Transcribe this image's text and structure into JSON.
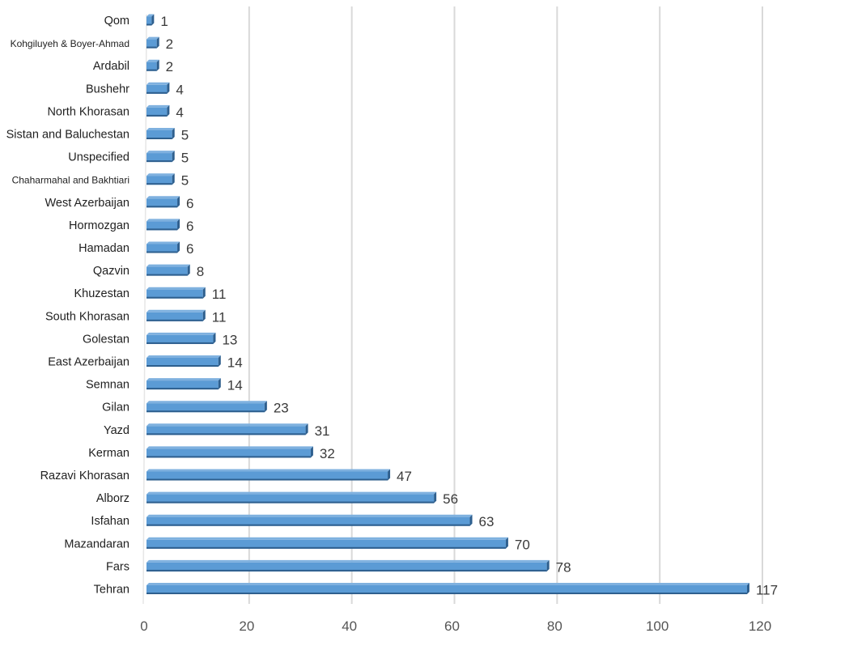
{
  "chart_data": {
    "type": "bar",
    "orientation": "horizontal",
    "title": "",
    "xlabel": "",
    "ylabel": "",
    "xlim": [
      0,
      120
    ],
    "xticks": [
      0,
      20,
      40,
      60,
      80,
      100,
      120
    ],
    "grid": "vertical",
    "legend": "none",
    "bar_color": "#5b9bd5",
    "bar_edge_color": "#2e5f8e",
    "categories": [
      "Qom",
      "Kohgiluyeh & Boyer-Ahmad",
      "Ardabil",
      "Bushehr",
      "North Khorasan",
      "Sistan and Baluchestan",
      "Unspecified",
      "Chaharmahal and Bakhtiari",
      "West Azerbaijan",
      "Hormozgan",
      "Hamadan",
      "Qazvin",
      "Khuzestan",
      "South Khorasan",
      "Golestan",
      "East Azerbaijan",
      "Semnan",
      "Gilan",
      "Yazd",
      "Kerman",
      "Razavi Khorasan",
      "Alborz",
      "Isfahan",
      "Mazandaran",
      "Fars",
      "Tehran"
    ],
    "values": [
      1,
      2,
      2,
      4,
      4,
      5,
      5,
      5,
      6,
      6,
      6,
      8,
      11,
      11,
      13,
      14,
      14,
      23,
      31,
      32,
      47,
      56,
      63,
      70,
      78,
      117
    ],
    "value_labels": [
      "1",
      "2",
      "2",
      "4",
      "4",
      "5",
      "5",
      "5",
      "6",
      "6",
      "6",
      "8",
      "11",
      "11",
      "13",
      "14",
      "14",
      "23",
      "31",
      "32",
      "47",
      "56",
      "63",
      "70",
      "78",
      "117"
    ]
  }
}
